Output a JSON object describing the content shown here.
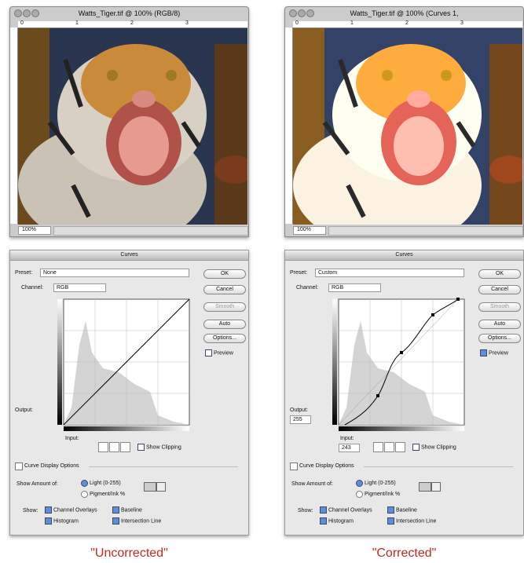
{
  "panels": [
    {
      "window": {
        "title": "Watts_Tiger.tif @ 100% (RGB/8)",
        "ruler": [
          "0",
          "1",
          "2",
          "3"
        ],
        "zoom": "100%"
      },
      "dialog": {
        "title": "Curves",
        "preset_label": "Preset:",
        "preset": "None",
        "channel_label": "Channel:",
        "channel": "RGB",
        "buttons": [
          "OK",
          "Cancel",
          "Smooth",
          "Auto",
          "Options..."
        ],
        "preview": "Preview",
        "output_label": "Output:",
        "input_label": "Input:",
        "show_clipping": "Show Clipping",
        "display_options": "Curve Display Options",
        "show_amount_label": "Show Amount of:",
        "light": "Light  (0-255)",
        "pigment": "Pigment/Ink %",
        "show_label": "Show:",
        "show_options": [
          "Channel Overlays",
          "Baseline",
          "Histogram",
          "Intersection Line"
        ]
      },
      "caption": "\"Uncorrected\""
    },
    {
      "window": {
        "title": "Watts_Tiger.tif @ 100% (Curves 1,",
        "ruler": [
          "0",
          "1",
          "2",
          "3"
        ],
        "zoom": "100%"
      },
      "dialog": {
        "title": "Curves",
        "preset_label": "Preset:",
        "preset": "Custom",
        "channel_label": "Channel:",
        "channel": "RGB",
        "buttons": [
          "OK",
          "Cancel",
          "Smooth",
          "Auto",
          "Options..."
        ],
        "preview": "Preview",
        "output_label": "Output:",
        "output": "255",
        "input_label": "Input:",
        "input": "243",
        "show_clipping": "Show Clipping",
        "display_options": "Curve Display Options",
        "show_amount_label": "Show Amount of:",
        "light": "Light  (0-255)",
        "pigment": "Pigment/Ink %",
        "show_label": "Show:",
        "show_options": [
          "Channel Overlays",
          "Baseline",
          "Histogram",
          "Intersection Line"
        ]
      },
      "caption": "\"Corrected\""
    }
  ]
}
